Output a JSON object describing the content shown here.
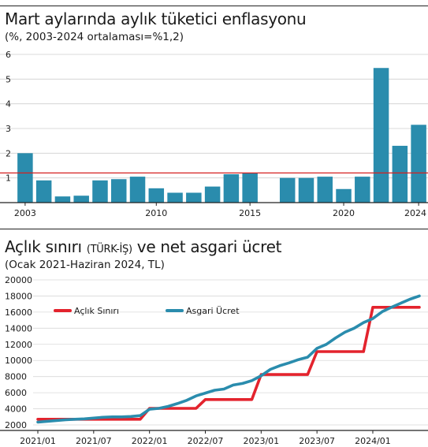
{
  "chart_data": [
    {
      "type": "bar",
      "title": "Mart aylarında aylık tüketici enflasyonu",
      "subtitle": "(%, 2003-2024 ortalaması=%1,2)",
      "categories": [
        2003,
        2004,
        2005,
        2006,
        2007,
        2008,
        2009,
        2010,
        2011,
        2012,
        2013,
        2014,
        2015,
        2016,
        2017,
        2018,
        2019,
        2020,
        2021,
        2022,
        2023,
        2024
      ],
      "x_tick_labels": [
        "2003",
        "2010",
        "2015",
        "2020",
        "2024"
      ],
      "x_tick_values": [
        2003,
        2010,
        2015,
        2020,
        2024
      ],
      "values": [
        2.0,
        0.9,
        0.25,
        0.28,
        0.9,
        0.95,
        1.05,
        0.58,
        0.4,
        0.4,
        0.65,
        1.15,
        1.2,
        -0.05,
        1.0,
        1.0,
        1.05,
        0.55,
        1.05,
        5.45,
        2.3,
        3.15
      ],
      "ylim": [
        0,
        6
      ],
      "y_ticks": [
        1,
        2,
        3,
        4,
        5,
        6
      ],
      "reference_line": 1.2,
      "bar_color": "#2a8cad",
      "reference_color": "#d42020"
    },
    {
      "type": "line",
      "title": "Açlık sınırı",
      "title_small": "(TÜRK-İŞ)",
      "title_rest": "ve net asgari ücret",
      "subtitle": "(Ocak 2021-Haziran 2024, TL)",
      "ylim": [
        2000,
        20000
      ],
      "y_ticks": [
        2000,
        4000,
        6000,
        8000,
        10000,
        12000,
        14000,
        16000,
        18000,
        20000
      ],
      "y_tick_labels": [
        "2000",
        "4000",
        "6000",
        "8000",
        "10000",
        "12000",
        "14000",
        "16000",
        "18000",
        "20000"
      ],
      "x_tick_labels": [
        "2021/01",
        "2021/07",
        "2022/01",
        "2022/07",
        "2023/01",
        "2023/07",
        "2024/01"
      ],
      "x_tick_values": [
        0,
        6,
        12,
        18,
        24,
        30,
        36
      ],
      "series": [
        {
          "name": "Açlık Sınırı",
          "color": "#e3232d",
          "x": [
            0,
            11,
            12,
            17,
            18,
            23,
            24,
            29,
            30,
            35,
            36,
            41
          ],
          "values": [
            2700,
            2700,
            4050,
            4050,
            5150,
            5150,
            8250,
            8250,
            11100,
            11100,
            16600,
            16600
          ]
        },
        {
          "name": "Asgari Ücret",
          "color": "#2a8cad",
          "x": [
            0,
            1,
            2,
            3,
            4,
            5,
            6,
            7,
            8,
            9,
            10,
            11,
            12,
            13,
            14,
            15,
            16,
            17,
            18,
            19,
            20,
            21,
            22,
            23,
            24,
            25,
            26,
            27,
            28,
            29,
            30,
            31,
            32,
            33,
            34,
            35,
            36,
            37,
            38,
            39,
            40,
            41
          ],
          "values": [
            2350,
            2450,
            2550,
            2650,
            2700,
            2750,
            2850,
            2950,
            3000,
            3000,
            3050,
            3150,
            3950,
            4050,
            4300,
            4650,
            5050,
            5600,
            5950,
            6300,
            6450,
            6950,
            7150,
            7500,
            8100,
            8900,
            9350,
            9700,
            10100,
            10400,
            11500,
            12000,
            12800,
            13500,
            14000,
            14700,
            15200,
            16050,
            16600,
            17100,
            17600,
            18000
          ]
        }
      ]
    }
  ]
}
